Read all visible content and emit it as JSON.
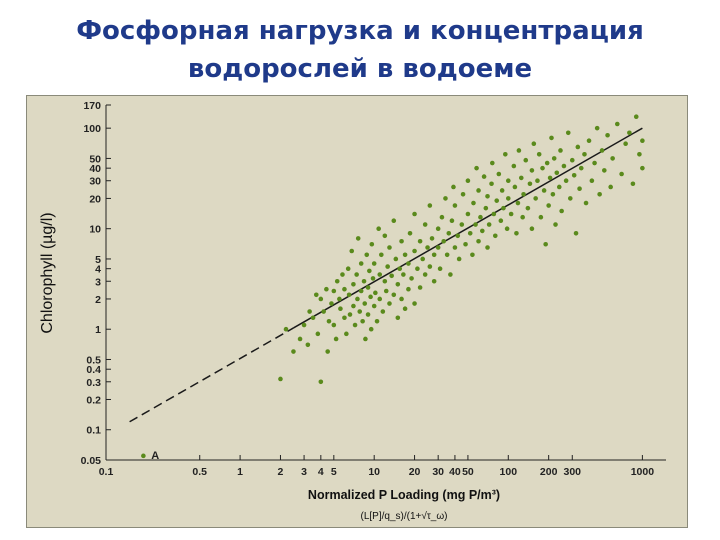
{
  "slide": {
    "title_line1": "Фосфорная нагрузка и концентрация",
    "title_line2": "водорослей в водоеме"
  },
  "colors": {
    "title": "#1f3a8a",
    "plot_background": "#ddd9c3",
    "points": "#5a8a1c",
    "fit_line": "#1a1a1a"
  },
  "chart_data": {
    "type": "scatter",
    "xscale": "log",
    "yscale": "log",
    "xlim": [
      0.1,
      1500
    ],
    "ylim": [
      0.05,
      170
    ],
    "xlabel": "Normalized P Loading (mg P/m³)",
    "xlabel_sub": "(L[P]/q_s)/(1+√τ_ω)",
    "ylabel": "Chlorophyll (µg/l)",
    "x_ticks": [
      {
        "v": 0.1,
        "t": "0.1"
      },
      {
        "v": 0.5,
        "t": "0.5"
      },
      {
        "v": 1,
        "t": "1"
      },
      {
        "v": 2,
        "t": "2"
      },
      {
        "v": 3,
        "t": "3"
      },
      {
        "v": 4,
        "t": "4"
      },
      {
        "v": 5,
        "t": "5"
      },
      {
        "v": 10,
        "t": "10"
      },
      {
        "v": 20,
        "t": "20"
      },
      {
        "v": 30,
        "t": "30"
      },
      {
        "v": 40,
        "t": "40"
      },
      {
        "v": 50,
        "t": "50"
      },
      {
        "v": 100,
        "t": "100"
      },
      {
        "v": 200,
        "t": "200"
      },
      {
        "v": 300,
        "t": "300"
      },
      {
        "v": 1000,
        "t": "1000"
      }
    ],
    "y_ticks": [
      {
        "v": 0.05,
        "t": "0.05"
      },
      {
        "v": 0.1,
        "t": "0.1"
      },
      {
        "v": 0.2,
        "t": "0.2"
      },
      {
        "v": 0.3,
        "t": "0.3"
      },
      {
        "v": 0.4,
        "t": "0.4"
      },
      {
        "v": 0.5,
        "t": "0.5"
      },
      {
        "v": 1,
        "t": "1"
      },
      {
        "v": 2,
        "t": "2"
      },
      {
        "v": 3,
        "t": "3"
      },
      {
        "v": 4,
        "t": "4"
      },
      {
        "v": 5,
        "t": "5"
      },
      {
        "v": 10,
        "t": "10"
      },
      {
        "v": 20,
        "t": "20"
      },
      {
        "v": 30,
        "t": "30"
      },
      {
        "v": 40,
        "t": "40"
      },
      {
        "v": 50,
        "t": "50"
      },
      {
        "v": 100,
        "t": "100"
      },
      {
        "v": 170,
        "t": "170"
      }
    ],
    "annotations": [
      {
        "text": "A",
        "x": 0.21,
        "y": 0.055
      }
    ],
    "fit_line": {
      "x": [
        0.15,
        1000
      ],
      "y": [
        0.12,
        100
      ],
      "dashed_below_x": 2.5
    },
    "points": [
      [
        0.19,
        0.055
      ],
      [
        2,
        0.32
      ],
      [
        2.2,
        1
      ],
      [
        2.5,
        0.6
      ],
      [
        2.8,
        0.8
      ],
      [
        3,
        1.1
      ],
      [
        3.2,
        0.7
      ],
      [
        3.3,
        1.5
      ],
      [
        3.5,
        1.3
      ],
      [
        3.7,
        2.2
      ],
      [
        3.8,
        0.9
      ],
      [
        4,
        0.3
      ],
      [
        4,
        2
      ],
      [
        4.2,
        1.5
      ],
      [
        4.4,
        2.5
      ],
      [
        4.5,
        0.6
      ],
      [
        4.6,
        1.2
      ],
      [
        4.8,
        1.8
      ],
      [
        5,
        2.4
      ],
      [
        5,
        1.1
      ],
      [
        5.2,
        0.8
      ],
      [
        5.3,
        3
      ],
      [
        5.5,
        2
      ],
      [
        5.6,
        1.6
      ],
      [
        5.8,
        3.5
      ],
      [
        6,
        2.5
      ],
      [
        6,
        1.3
      ],
      [
        6.2,
        0.9
      ],
      [
        6.4,
        4
      ],
      [
        6.5,
        2.2
      ],
      [
        6.6,
        1.4
      ],
      [
        6.8,
        6
      ],
      [
        7,
        2.8
      ],
      [
        7,
        1.7
      ],
      [
        7.2,
        1.1
      ],
      [
        7.4,
        3.5
      ],
      [
        7.5,
        2
      ],
      [
        7.6,
        8
      ],
      [
        7.8,
        1.5
      ],
      [
        8,
        4.5
      ],
      [
        8,
        2.4
      ],
      [
        8.2,
        1.2
      ],
      [
        8.4,
        3
      ],
      [
        8.5,
        1.8
      ],
      [
        8.6,
        0.8
      ],
      [
        8.8,
        5.5
      ],
      [
        9,
        2.6
      ],
      [
        9,
        1.4
      ],
      [
        9.2,
        3.8
      ],
      [
        9.4,
        2.1
      ],
      [
        9.5,
        1
      ],
      [
        9.6,
        7
      ],
      [
        9.8,
        3.2
      ],
      [
        10,
        1.7
      ],
      [
        10,
        4.5
      ],
      [
        10.2,
        2.3
      ],
      [
        10.5,
        1.2
      ],
      [
        10.8,
        10
      ],
      [
        11,
        3.5
      ],
      [
        11,
        2
      ],
      [
        11.3,
        5.5
      ],
      [
        11.6,
        1.5
      ],
      [
        12,
        3
      ],
      [
        12,
        8.5
      ],
      [
        12.3,
        2.4
      ],
      [
        12.6,
        4.2
      ],
      [
        13,
        1.8
      ],
      [
        13,
        6.5
      ],
      [
        13.5,
        3.4
      ],
      [
        14,
        2.2
      ],
      [
        14,
        12
      ],
      [
        14.5,
        5
      ],
      [
        15,
        2.8
      ],
      [
        15,
        1.3
      ],
      [
        15.5,
        4
      ],
      [
        16,
        7.5
      ],
      [
        16,
        2
      ],
      [
        16.5,
        3.5
      ],
      [
        17,
        5.5
      ],
      [
        17,
        1.6
      ],
      [
        18,
        4.5
      ],
      [
        18,
        2.5
      ],
      [
        18.5,
        9
      ],
      [
        19,
        3.2
      ],
      [
        20,
        6
      ],
      [
        20,
        1.8
      ],
      [
        20,
        14
      ],
      [
        21,
        4
      ],
      [
        22,
        2.6
      ],
      [
        22,
        7.5
      ],
      [
        23,
        5
      ],
      [
        24,
        3.5
      ],
      [
        24,
        11
      ],
      [
        25,
        6.5
      ],
      [
        26,
        4.2
      ],
      [
        26,
        17
      ],
      [
        27,
        8
      ],
      [
        28,
        3
      ],
      [
        28,
        5.5
      ],
      [
        30,
        10
      ],
      [
        30,
        6.5
      ],
      [
        31,
        4
      ],
      [
        32,
        13
      ],
      [
        33,
        7.5
      ],
      [
        34,
        20
      ],
      [
        35,
        5.5
      ],
      [
        36,
        9
      ],
      [
        37,
        3.5
      ],
      [
        38,
        12
      ],
      [
        39,
        26
      ],
      [
        40,
        6.5
      ],
      [
        40,
        17
      ],
      [
        42,
        8.5
      ],
      [
        43,
        5
      ],
      [
        45,
        11
      ],
      [
        46,
        22
      ],
      [
        48,
        7
      ],
      [
        50,
        14
      ],
      [
        50,
        30
      ],
      [
        52,
        9
      ],
      [
        54,
        5.5
      ],
      [
        55,
        18
      ],
      [
        57,
        11
      ],
      [
        58,
        40
      ],
      [
        60,
        7.5
      ],
      [
        60,
        24
      ],
      [
        62,
        13
      ],
      [
        64,
        9.5
      ],
      [
        66,
        33
      ],
      [
        68,
        16
      ],
      [
        70,
        6.5
      ],
      [
        70,
        21
      ],
      [
        72,
        11
      ],
      [
        75,
        28
      ],
      [
        76,
        45
      ],
      [
        78,
        14
      ],
      [
        80,
        8.5
      ],
      [
        82,
        19
      ],
      [
        85,
        35
      ],
      [
        88,
        12
      ],
      [
        90,
        24
      ],
      [
        92,
        16
      ],
      [
        95,
        55
      ],
      [
        98,
        10
      ],
      [
        100,
        20
      ],
      [
        100,
        30
      ],
      [
        105,
        14
      ],
      [
        110,
        42
      ],
      [
        112,
        26
      ],
      [
        115,
        9
      ],
      [
        118,
        18
      ],
      [
        120,
        60
      ],
      [
        125,
        32
      ],
      [
        128,
        13
      ],
      [
        130,
        22
      ],
      [
        135,
        48
      ],
      [
        140,
        16
      ],
      [
        145,
        28
      ],
      [
        150,
        10
      ],
      [
        150,
        38
      ],
      [
        155,
        70
      ],
      [
        160,
        20
      ],
      [
        165,
        30
      ],
      [
        170,
        55
      ],
      [
        175,
        13
      ],
      [
        180,
        40
      ],
      [
        185,
        24
      ],
      [
        190,
        7
      ],
      [
        195,
        45
      ],
      [
        200,
        17
      ],
      [
        205,
        32
      ],
      [
        210,
        80
      ],
      [
        215,
        22
      ],
      [
        220,
        50
      ],
      [
        225,
        11
      ],
      [
        230,
        36
      ],
      [
        240,
        26
      ],
      [
        245,
        60
      ],
      [
        250,
        15
      ],
      [
        260,
        42
      ],
      [
        270,
        30
      ],
      [
        280,
        90
      ],
      [
        290,
        20
      ],
      [
        300,
        48
      ],
      [
        310,
        34
      ],
      [
        320,
        9
      ],
      [
        330,
        65
      ],
      [
        340,
        25
      ],
      [
        350,
        40
      ],
      [
        370,
        55
      ],
      [
        380,
        18
      ],
      [
        400,
        75
      ],
      [
        420,
        30
      ],
      [
        440,
        45
      ],
      [
        460,
        100
      ],
      [
        480,
        22
      ],
      [
        500,
        60
      ],
      [
        520,
        38
      ],
      [
        550,
        85
      ],
      [
        580,
        26
      ],
      [
        600,
        50
      ],
      [
        650,
        110
      ],
      [
        700,
        35
      ],
      [
        750,
        70
      ],
      [
        800,
        90
      ],
      [
        850,
        28
      ],
      [
        900,
        130
      ],
      [
        950,
        55
      ],
      [
        1000,
        75
      ],
      [
        1000,
        40
      ]
    ]
  }
}
